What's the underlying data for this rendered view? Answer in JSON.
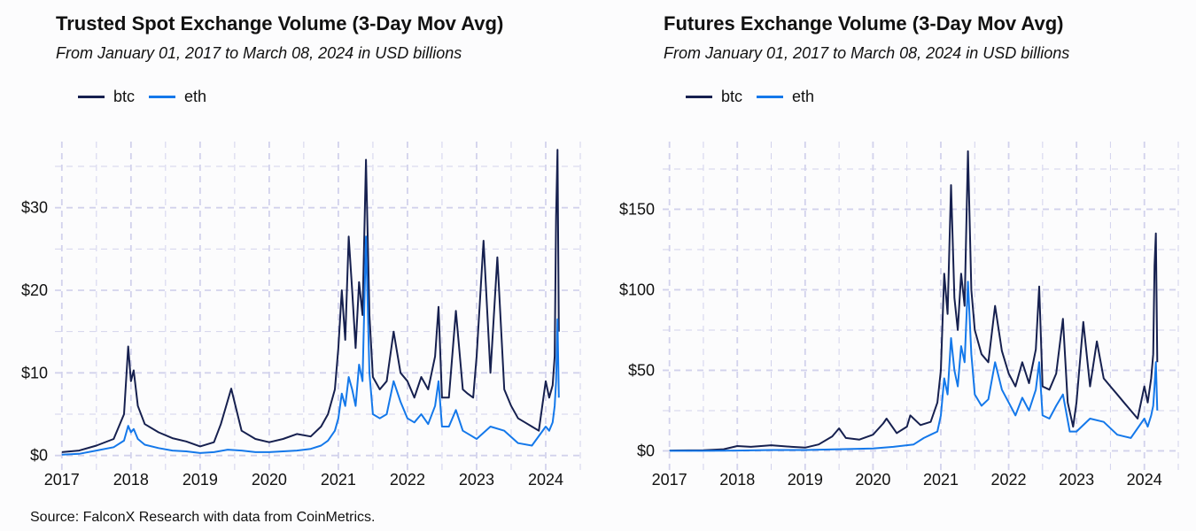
{
  "source": "Source: FalconX Research with data from CoinMetrics.",
  "colors": {
    "btc": "#16204f",
    "eth": "#1478ea",
    "grid": "#d2d2ec"
  },
  "chart_data": [
    {
      "type": "line",
      "title": "Trusted Spot Exchange Volume (3-Day Mov Avg)",
      "subtitle": "From January 01, 2017 to March 08, 2024 in USD billions",
      "xlabel": "",
      "ylabel": "",
      "unit": "USD billions",
      "x_ticks": [
        "2017",
        "2018",
        "2019",
        "2020",
        "2021",
        "2022",
        "2023",
        "2024"
      ],
      "y_ticks": [
        "$0",
        "$10",
        "$20",
        "$30"
      ],
      "y_tick_values": [
        0,
        10,
        20,
        30
      ],
      "xlim": [
        2016.9,
        2024.5
      ],
      "ylim": [
        -1,
        38
      ],
      "grid": true,
      "legend_position": "top-left",
      "series": [
        {
          "name": "btc",
          "x": [
            2017.0,
            2017.25,
            2017.5,
            2017.75,
            2017.9,
            2017.96,
            2018.0,
            2018.04,
            2018.1,
            2018.2,
            2018.4,
            2018.6,
            2018.8,
            2019.0,
            2019.2,
            2019.3,
            2019.45,
            2019.6,
            2019.8,
            2020.0,
            2020.2,
            2020.4,
            2020.6,
            2020.75,
            2020.85,
            2020.95,
            2021.0,
            2021.05,
            2021.1,
            2021.15,
            2021.2,
            2021.25,
            2021.3,
            2021.35,
            2021.4,
            2021.45,
            2021.5,
            2021.6,
            2021.7,
            2021.8,
            2021.9,
            2022.0,
            2022.1,
            2022.2,
            2022.3,
            2022.4,
            2022.45,
            2022.5,
            2022.6,
            2022.7,
            2022.8,
            2022.87,
            2022.95,
            2023.0,
            2023.1,
            2023.2,
            2023.3,
            2023.4,
            2023.5,
            2023.6,
            2023.7,
            2023.8,
            2023.9,
            2024.0,
            2024.05,
            2024.1,
            2024.13,
            2024.15,
            2024.17,
            2024.19
          ],
          "values": [
            0.4,
            0.6,
            1.2,
            2.0,
            5.0,
            13.2,
            9.0,
            10.3,
            6.0,
            3.8,
            2.8,
            2.1,
            1.7,
            1.1,
            1.6,
            3.8,
            8.1,
            3.0,
            2.0,
            1.6,
            2.0,
            2.6,
            2.3,
            3.5,
            5.0,
            8.0,
            13.0,
            20.0,
            14.0,
            26.5,
            20.0,
            13.0,
            21.0,
            17.0,
            35.8,
            17.0,
            9.5,
            8.0,
            9.0,
            15.0,
            10.0,
            9.0,
            7.0,
            9.5,
            8.0,
            12.0,
            18.0,
            7.0,
            7.0,
            17.5,
            8.0,
            7.5,
            7.0,
            12.0,
            26.0,
            10.0,
            24.0,
            8.0,
            6.0,
            4.5,
            4.0,
            3.5,
            3.0,
            9.0,
            7.0,
            8.5,
            12.0,
            29.0,
            37.0,
            15.0
          ]
        },
        {
          "name": "eth",
          "x": [
            2017.0,
            2017.25,
            2017.5,
            2017.75,
            2017.9,
            2017.96,
            2018.0,
            2018.04,
            2018.1,
            2018.2,
            2018.4,
            2018.6,
            2018.8,
            2019.0,
            2019.2,
            2019.4,
            2019.6,
            2019.8,
            2020.0,
            2020.2,
            2020.4,
            2020.6,
            2020.75,
            2020.85,
            2020.95,
            2021.0,
            2021.05,
            2021.1,
            2021.15,
            2021.2,
            2021.25,
            2021.3,
            2021.35,
            2021.4,
            2021.45,
            2021.5,
            2021.6,
            2021.7,
            2021.8,
            2021.9,
            2022.0,
            2022.1,
            2022.2,
            2022.3,
            2022.4,
            2022.45,
            2022.5,
            2022.6,
            2022.7,
            2022.8,
            2022.9,
            2023.0,
            2023.2,
            2023.4,
            2023.6,
            2023.8,
            2024.0,
            2024.05,
            2024.1,
            2024.13,
            2024.15,
            2024.17,
            2024.19
          ],
          "values": [
            0.1,
            0.2,
            0.6,
            1.0,
            1.8,
            3.6,
            2.8,
            3.2,
            2.0,
            1.3,
            0.9,
            0.6,
            0.5,
            0.3,
            0.4,
            0.7,
            0.6,
            0.4,
            0.4,
            0.5,
            0.6,
            0.8,
            1.2,
            1.8,
            3.0,
            4.5,
            7.5,
            6.0,
            9.5,
            8.0,
            6.0,
            11.0,
            9.0,
            26.5,
            10.0,
            5.0,
            4.5,
            5.0,
            9.0,
            6.5,
            4.5,
            4.0,
            5.0,
            3.8,
            6.0,
            9.0,
            3.5,
            3.5,
            5.5,
            3.0,
            2.5,
            2.0,
            3.5,
            3.0,
            1.5,
            1.2,
            3.5,
            3.0,
            4.0,
            6.0,
            9.0,
            16.5,
            7.0
          ]
        }
      ]
    },
    {
      "type": "line",
      "title": "Futures Exchange Volume (3-Day Mov Avg)",
      "subtitle": "From January 01, 2017 to March 08, 2024 in USD billions",
      "xlabel": "",
      "ylabel": "",
      "unit": "USD billions",
      "x_ticks": [
        "2017",
        "2018",
        "2019",
        "2020",
        "2021",
        "2022",
        "2023",
        "2024"
      ],
      "y_ticks": [
        "$0",
        "$50",
        "$100",
        "$150"
      ],
      "y_tick_values": [
        0,
        50,
        100,
        150
      ],
      "xlim": [
        2016.9,
        2024.5
      ],
      "ylim": [
        -8,
        192
      ],
      "grid": true,
      "legend_position": "top-left",
      "series": [
        {
          "name": "btc",
          "x": [
            2017.0,
            2017.5,
            2017.8,
            2018.0,
            2018.2,
            2018.5,
            2018.8,
            2019.0,
            2019.2,
            2019.4,
            2019.5,
            2019.6,
            2019.8,
            2020.0,
            2020.15,
            2020.2,
            2020.35,
            2020.5,
            2020.55,
            2020.7,
            2020.85,
            2020.95,
            2021.0,
            2021.05,
            2021.1,
            2021.15,
            2021.2,
            2021.25,
            2021.3,
            2021.35,
            2021.4,
            2021.45,
            2021.5,
            2021.6,
            2021.7,
            2021.8,
            2021.9,
            2022.0,
            2022.1,
            2022.2,
            2022.3,
            2022.4,
            2022.45,
            2022.5,
            2022.6,
            2022.7,
            2022.8,
            2022.87,
            2022.95,
            2023.0,
            2023.1,
            2023.2,
            2023.3,
            2023.4,
            2023.5,
            2023.6,
            2023.7,
            2023.8,
            2023.9,
            2024.0,
            2024.05,
            2024.1,
            2024.13,
            2024.15,
            2024.17,
            2024.19
          ],
          "values": [
            0.2,
            0.4,
            1.0,
            3.0,
            2.5,
            3.5,
            2.5,
            2.0,
            4.0,
            9.0,
            14.0,
            8.0,
            7.0,
            10.0,
            17.0,
            20.0,
            11.0,
            15.0,
            22.0,
            16.0,
            18.0,
            30.0,
            50.0,
            110.0,
            85.0,
            165.0,
            95.0,
            75.0,
            110.0,
            90.0,
            186.0,
            100.0,
            75.0,
            60.0,
            55.0,
            90.0,
            62.0,
            48.0,
            40.0,
            55.0,
            42.0,
            63.0,
            102.0,
            40.0,
            38.0,
            48.0,
            82.0,
            30.0,
            15.0,
            30.0,
            80.0,
            40.0,
            68.0,
            45.0,
            40.0,
            35.0,
            30.0,
            25.0,
            20.0,
            40.0,
            30.0,
            45.0,
            60.0,
            115.0,
            135.0,
            55.0
          ]
        },
        {
          "name": "eth",
          "x": [
            2017.0,
            2017.5,
            2018.0,
            2018.5,
            2019.0,
            2019.5,
            2020.0,
            2020.3,
            2020.6,
            2020.75,
            2020.85,
            2020.95,
            2021.0,
            2021.05,
            2021.1,
            2021.15,
            2021.2,
            2021.25,
            2021.3,
            2021.35,
            2021.4,
            2021.45,
            2021.5,
            2021.6,
            2021.7,
            2021.8,
            2021.9,
            2022.0,
            2022.1,
            2022.2,
            2022.3,
            2022.4,
            2022.45,
            2022.5,
            2022.6,
            2022.7,
            2022.8,
            2022.9,
            2023.0,
            2023.2,
            2023.4,
            2023.6,
            2023.8,
            2024.0,
            2024.05,
            2024.1,
            2024.13,
            2024.15,
            2024.17,
            2024.19
          ],
          "values": [
            0.0,
            0.0,
            0.2,
            0.5,
            0.5,
            1.0,
            1.5,
            2.5,
            4.0,
            8.0,
            10.0,
            12.0,
            22.0,
            45.0,
            35.0,
            70.0,
            50.0,
            40.0,
            65.0,
            55.0,
            105.0,
            60.0,
            35.0,
            28.0,
            32.0,
            55.0,
            38.0,
            30.0,
            22.0,
            33.0,
            25.0,
            38.0,
            55.0,
            22.0,
            20.0,
            28.0,
            35.0,
            12.0,
            12.0,
            20.0,
            18.0,
            10.0,
            8.0,
            20.0,
            15.0,
            22.0,
            28.0,
            40.0,
            55.0,
            25.0
          ]
        }
      ]
    }
  ]
}
